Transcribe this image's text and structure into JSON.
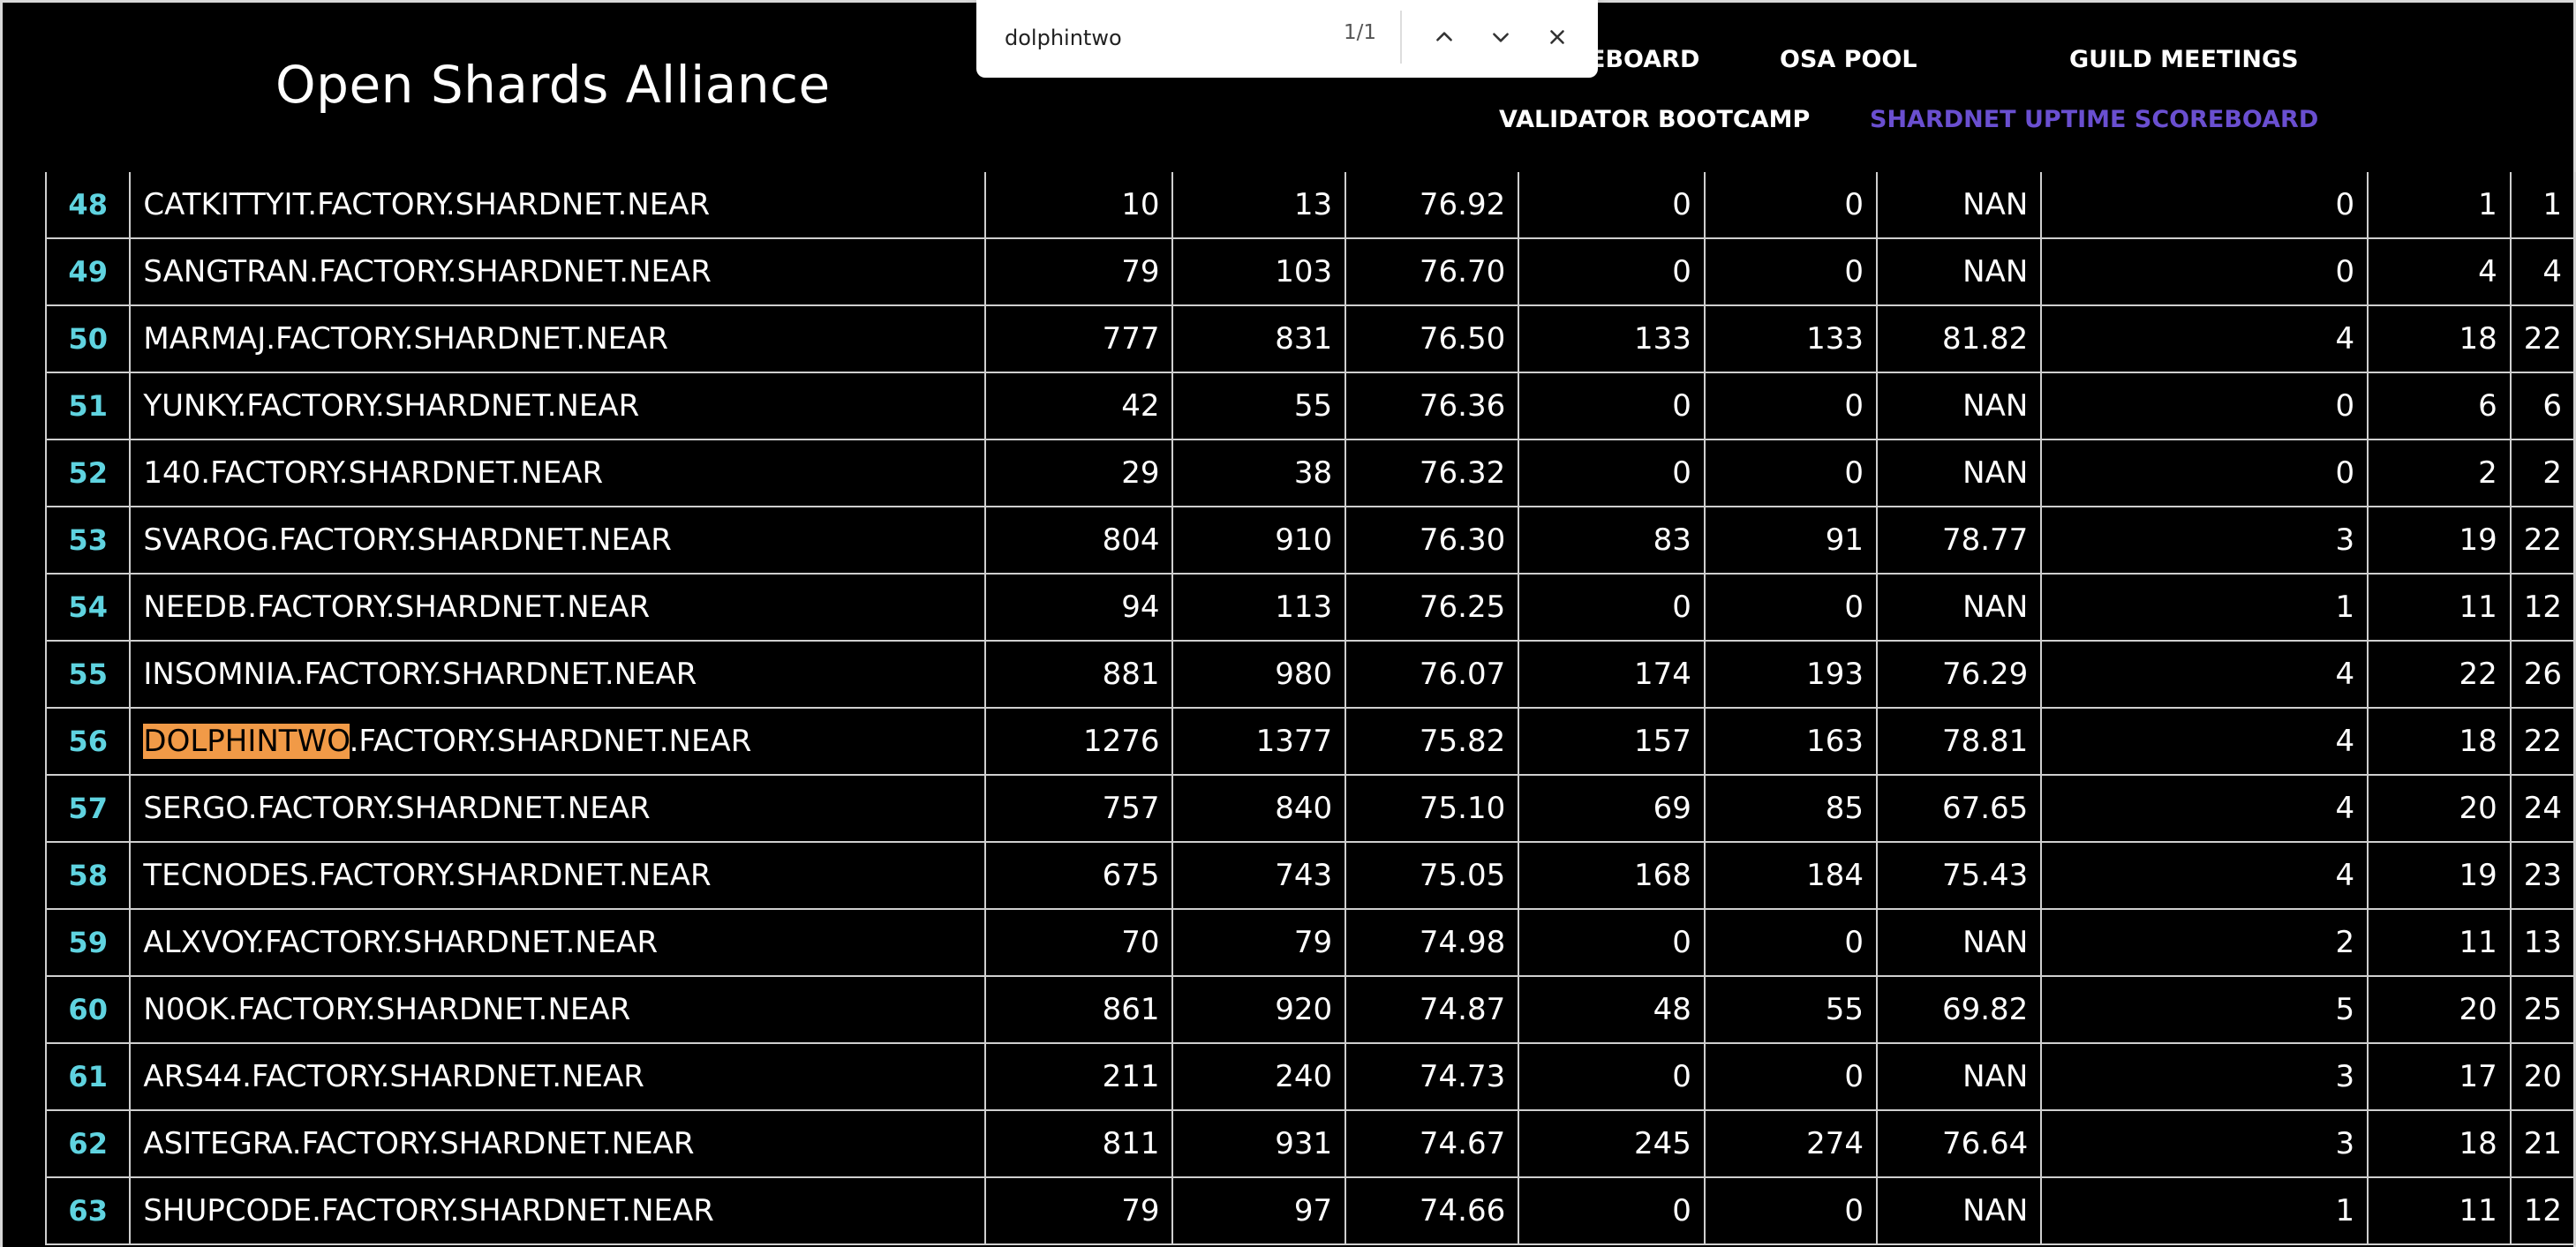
{
  "site": {
    "title": "Open Shards Alliance"
  },
  "nav": {
    "scoreboard_fragment": "EBOARD",
    "osa_pool": "OSA POOL",
    "guild_meetings": "GUILD MEETINGS",
    "validator_bootcamp": "VALIDATOR BOOTCAMP",
    "shardnet_uptime_scoreboard": "SHARDNET UPTIME SCOREBOARD"
  },
  "findbar": {
    "query": "dolphintwo",
    "count": "1/1",
    "icons": {
      "prev": "chevron-up-icon",
      "next": "chevron-down-icon",
      "close": "close-icon"
    }
  },
  "highlight_color": "#f19a47",
  "active_nav_color": "#6a4fd0",
  "rank_color": "#5fd3e0",
  "rows": [
    {
      "rank": "48",
      "name": "CATKITTYIT.FACTORY.SHARDNET.NEAR",
      "c1": "10",
      "c2": "13",
      "c3": "76.92",
      "c4": "0",
      "c5": "0",
      "c6": "NAN",
      "c7": "0",
      "c8": "1",
      "c9": "1"
    },
    {
      "rank": "49",
      "name": "SANGTRAN.FACTORY.SHARDNET.NEAR",
      "c1": "79",
      "c2": "103",
      "c3": "76.70",
      "c4": "0",
      "c5": "0",
      "c6": "NAN",
      "c7": "0",
      "c8": "4",
      "c9": "4"
    },
    {
      "rank": "50",
      "name": "MARMAJ.FACTORY.SHARDNET.NEAR",
      "c1": "777",
      "c2": "831",
      "c3": "76.50",
      "c4": "133",
      "c5": "133",
      "c6": "81.82",
      "c7": "4",
      "c8": "18",
      "c9": "22"
    },
    {
      "rank": "51",
      "name": "YUNKY.FACTORY.SHARDNET.NEAR",
      "c1": "42",
      "c2": "55",
      "c3": "76.36",
      "c4": "0",
      "c5": "0",
      "c6": "NAN",
      "c7": "0",
      "c8": "6",
      "c9": "6"
    },
    {
      "rank": "52",
      "name": "140.FACTORY.SHARDNET.NEAR",
      "c1": "29",
      "c2": "38",
      "c3": "76.32",
      "c4": "0",
      "c5": "0",
      "c6": "NAN",
      "c7": "0",
      "c8": "2",
      "c9": "2"
    },
    {
      "rank": "53",
      "name": "SVAROG.FACTORY.SHARDNET.NEAR",
      "c1": "804",
      "c2": "910",
      "c3": "76.30",
      "c4": "83",
      "c5": "91",
      "c6": "78.77",
      "c7": "3",
      "c8": "19",
      "c9": "22"
    },
    {
      "rank": "54",
      "name": "NEEDB.FACTORY.SHARDNET.NEAR",
      "c1": "94",
      "c2": "113",
      "c3": "76.25",
      "c4": "0",
      "c5": "0",
      "c6": "NAN",
      "c7": "1",
      "c8": "11",
      "c9": "12"
    },
    {
      "rank": "55",
      "name": "INSOMNIA.FACTORY.SHARDNET.NEAR",
      "c1": "881",
      "c2": "980",
      "c3": "76.07",
      "c4": "174",
      "c5": "193",
      "c6": "76.29",
      "c7": "4",
      "c8": "22",
      "c9": "26"
    },
    {
      "rank": "56",
      "name_match": "DOLPHINTWO",
      "name_rest": ".FACTORY.SHARDNET.NEAR",
      "c1": "1276",
      "c2": "1377",
      "c3": "75.82",
      "c4": "157",
      "c5": "163",
      "c6": "78.81",
      "c7": "4",
      "c8": "18",
      "c9": "22"
    },
    {
      "rank": "57",
      "name": "SERGO.FACTORY.SHARDNET.NEAR",
      "c1": "757",
      "c2": "840",
      "c3": "75.10",
      "c4": "69",
      "c5": "85",
      "c6": "67.65",
      "c7": "4",
      "c8": "20",
      "c9": "24"
    },
    {
      "rank": "58",
      "name": "TECNODES.FACTORY.SHARDNET.NEAR",
      "c1": "675",
      "c2": "743",
      "c3": "75.05",
      "c4": "168",
      "c5": "184",
      "c6": "75.43",
      "c7": "4",
      "c8": "19",
      "c9": "23"
    },
    {
      "rank": "59",
      "name": "ALXVOY.FACTORY.SHARDNET.NEAR",
      "c1": "70",
      "c2": "79",
      "c3": "74.98",
      "c4": "0",
      "c5": "0",
      "c6": "NAN",
      "c7": "2",
      "c8": "11",
      "c9": "13"
    },
    {
      "rank": "60",
      "name": "N0OK.FACTORY.SHARDNET.NEAR",
      "c1": "861",
      "c2": "920",
      "c3": "74.87",
      "c4": "48",
      "c5": "55",
      "c6": "69.82",
      "c7": "5",
      "c8": "20",
      "c9": "25"
    },
    {
      "rank": "61",
      "name": "ARS44.FACTORY.SHARDNET.NEAR",
      "c1": "211",
      "c2": "240",
      "c3": "74.73",
      "c4": "0",
      "c5": "0",
      "c6": "NAN",
      "c7": "3",
      "c8": "17",
      "c9": "20"
    },
    {
      "rank": "62",
      "name": "ASITEGRA.FACTORY.SHARDNET.NEAR",
      "c1": "811",
      "c2": "931",
      "c3": "74.67",
      "c4": "245",
      "c5": "274",
      "c6": "76.64",
      "c7": "3",
      "c8": "18",
      "c9": "21"
    },
    {
      "rank": "63",
      "name": "SHUPCODE.FACTORY.SHARDNET.NEAR",
      "c1": "79",
      "c2": "97",
      "c3": "74.66",
      "c4": "0",
      "c5": "0",
      "c6": "NAN",
      "c7": "1",
      "c8": "11",
      "c9": "12"
    }
  ]
}
